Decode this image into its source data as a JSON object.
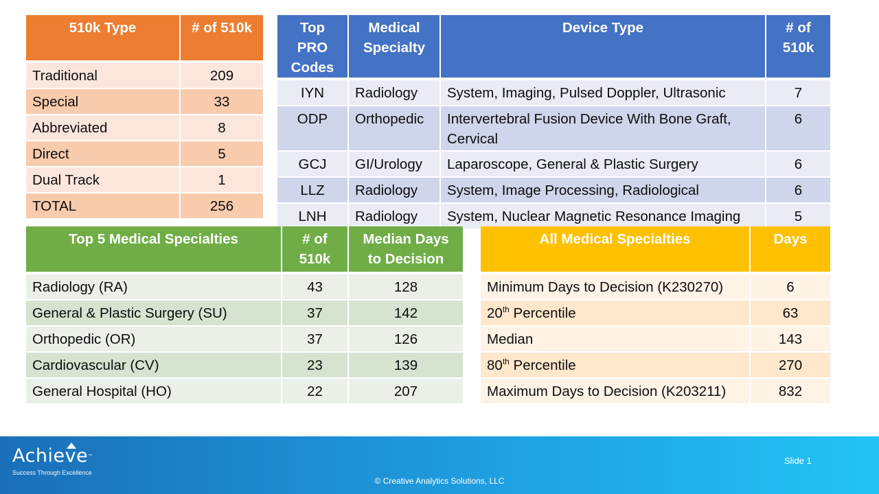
{
  "type_table": {
    "headers": [
      "510k Type",
      "# of 510k"
    ],
    "rows": [
      {
        "type": "Traditional",
        "count": "209"
      },
      {
        "type": "Special",
        "count": "33"
      },
      {
        "type": "Abbreviated",
        "count": "8"
      },
      {
        "type": "Direct",
        "count": "5"
      },
      {
        "type": "Dual Track",
        "count": "1"
      },
      {
        "type": "TOTAL",
        "count": "256"
      }
    ],
    "header_color": "#ed7d31"
  },
  "codes_table": {
    "headers": [
      "Top PRO Codes",
      "Medical Specialty",
      "Device Type",
      "# of 510k"
    ],
    "rows": [
      {
        "code": "IYN",
        "specialty": "Radiology",
        "device": "System, Imaging, Pulsed Doppler, Ultrasonic",
        "count": "7"
      },
      {
        "code": "ODP",
        "specialty": "Orthopedic",
        "device": "Intervertebral Fusion Device With Bone Graft, Cervical",
        "count": "6"
      },
      {
        "code": "GCJ",
        "specialty": "GI/Urology",
        "device": "Laparoscope, General & Plastic Surgery",
        "count": "6"
      },
      {
        "code": "LLZ",
        "specialty": "Radiology",
        "device": "System, Image Processing, Radiological",
        "count": "6"
      },
      {
        "code": "LNH",
        "specialty": "Radiology",
        "device": "System, Nuclear Magnetic Resonance Imaging",
        "count": "5"
      }
    ],
    "header_color": "#4472c4"
  },
  "specialty_table": {
    "headers": [
      "Top 5 Medical Specialties",
      "# of 510k",
      "Median Days to Decision"
    ],
    "rows": [
      {
        "name": "Radiology (RA)",
        "count": "43",
        "median": "128"
      },
      {
        "name": "General & Plastic Surgery (SU)",
        "count": "37",
        "median": "142"
      },
      {
        "name": "Orthopedic (OR)",
        "count": "37",
        "median": "126"
      },
      {
        "name": "Cardiovascular (CV)",
        "count": "23",
        "median": "139"
      },
      {
        "name": "General Hospital (HO)",
        "count": "22",
        "median": "207"
      }
    ],
    "header_color": "#70ad47"
  },
  "days_table": {
    "headers": [
      "All Medical Specialties",
      "Days"
    ],
    "rows": [
      {
        "pre": "Minimum Days to Decision (K230270)",
        "sup": "",
        "post": "",
        "days": "6"
      },
      {
        "pre": "20",
        "sup": "th",
        "post": " Percentile",
        "days": "63"
      },
      {
        "pre": "Median",
        "sup": "",
        "post": "",
        "days": "143"
      },
      {
        "pre": "80",
        "sup": "th",
        "post": " Percentile",
        "days": "270"
      },
      {
        "pre": "Maximum Days to Decision (K203211)",
        "sup": "",
        "post": "",
        "days": "832"
      }
    ],
    "header_color": "#ffc000"
  },
  "footer": {
    "logo_text": "Achieve",
    "logo_tm": "™",
    "tagline": "Success Through Excellence",
    "copyright": "© Creative Analytics Solutions, LLC",
    "slide_number": "Slide 1"
  }
}
